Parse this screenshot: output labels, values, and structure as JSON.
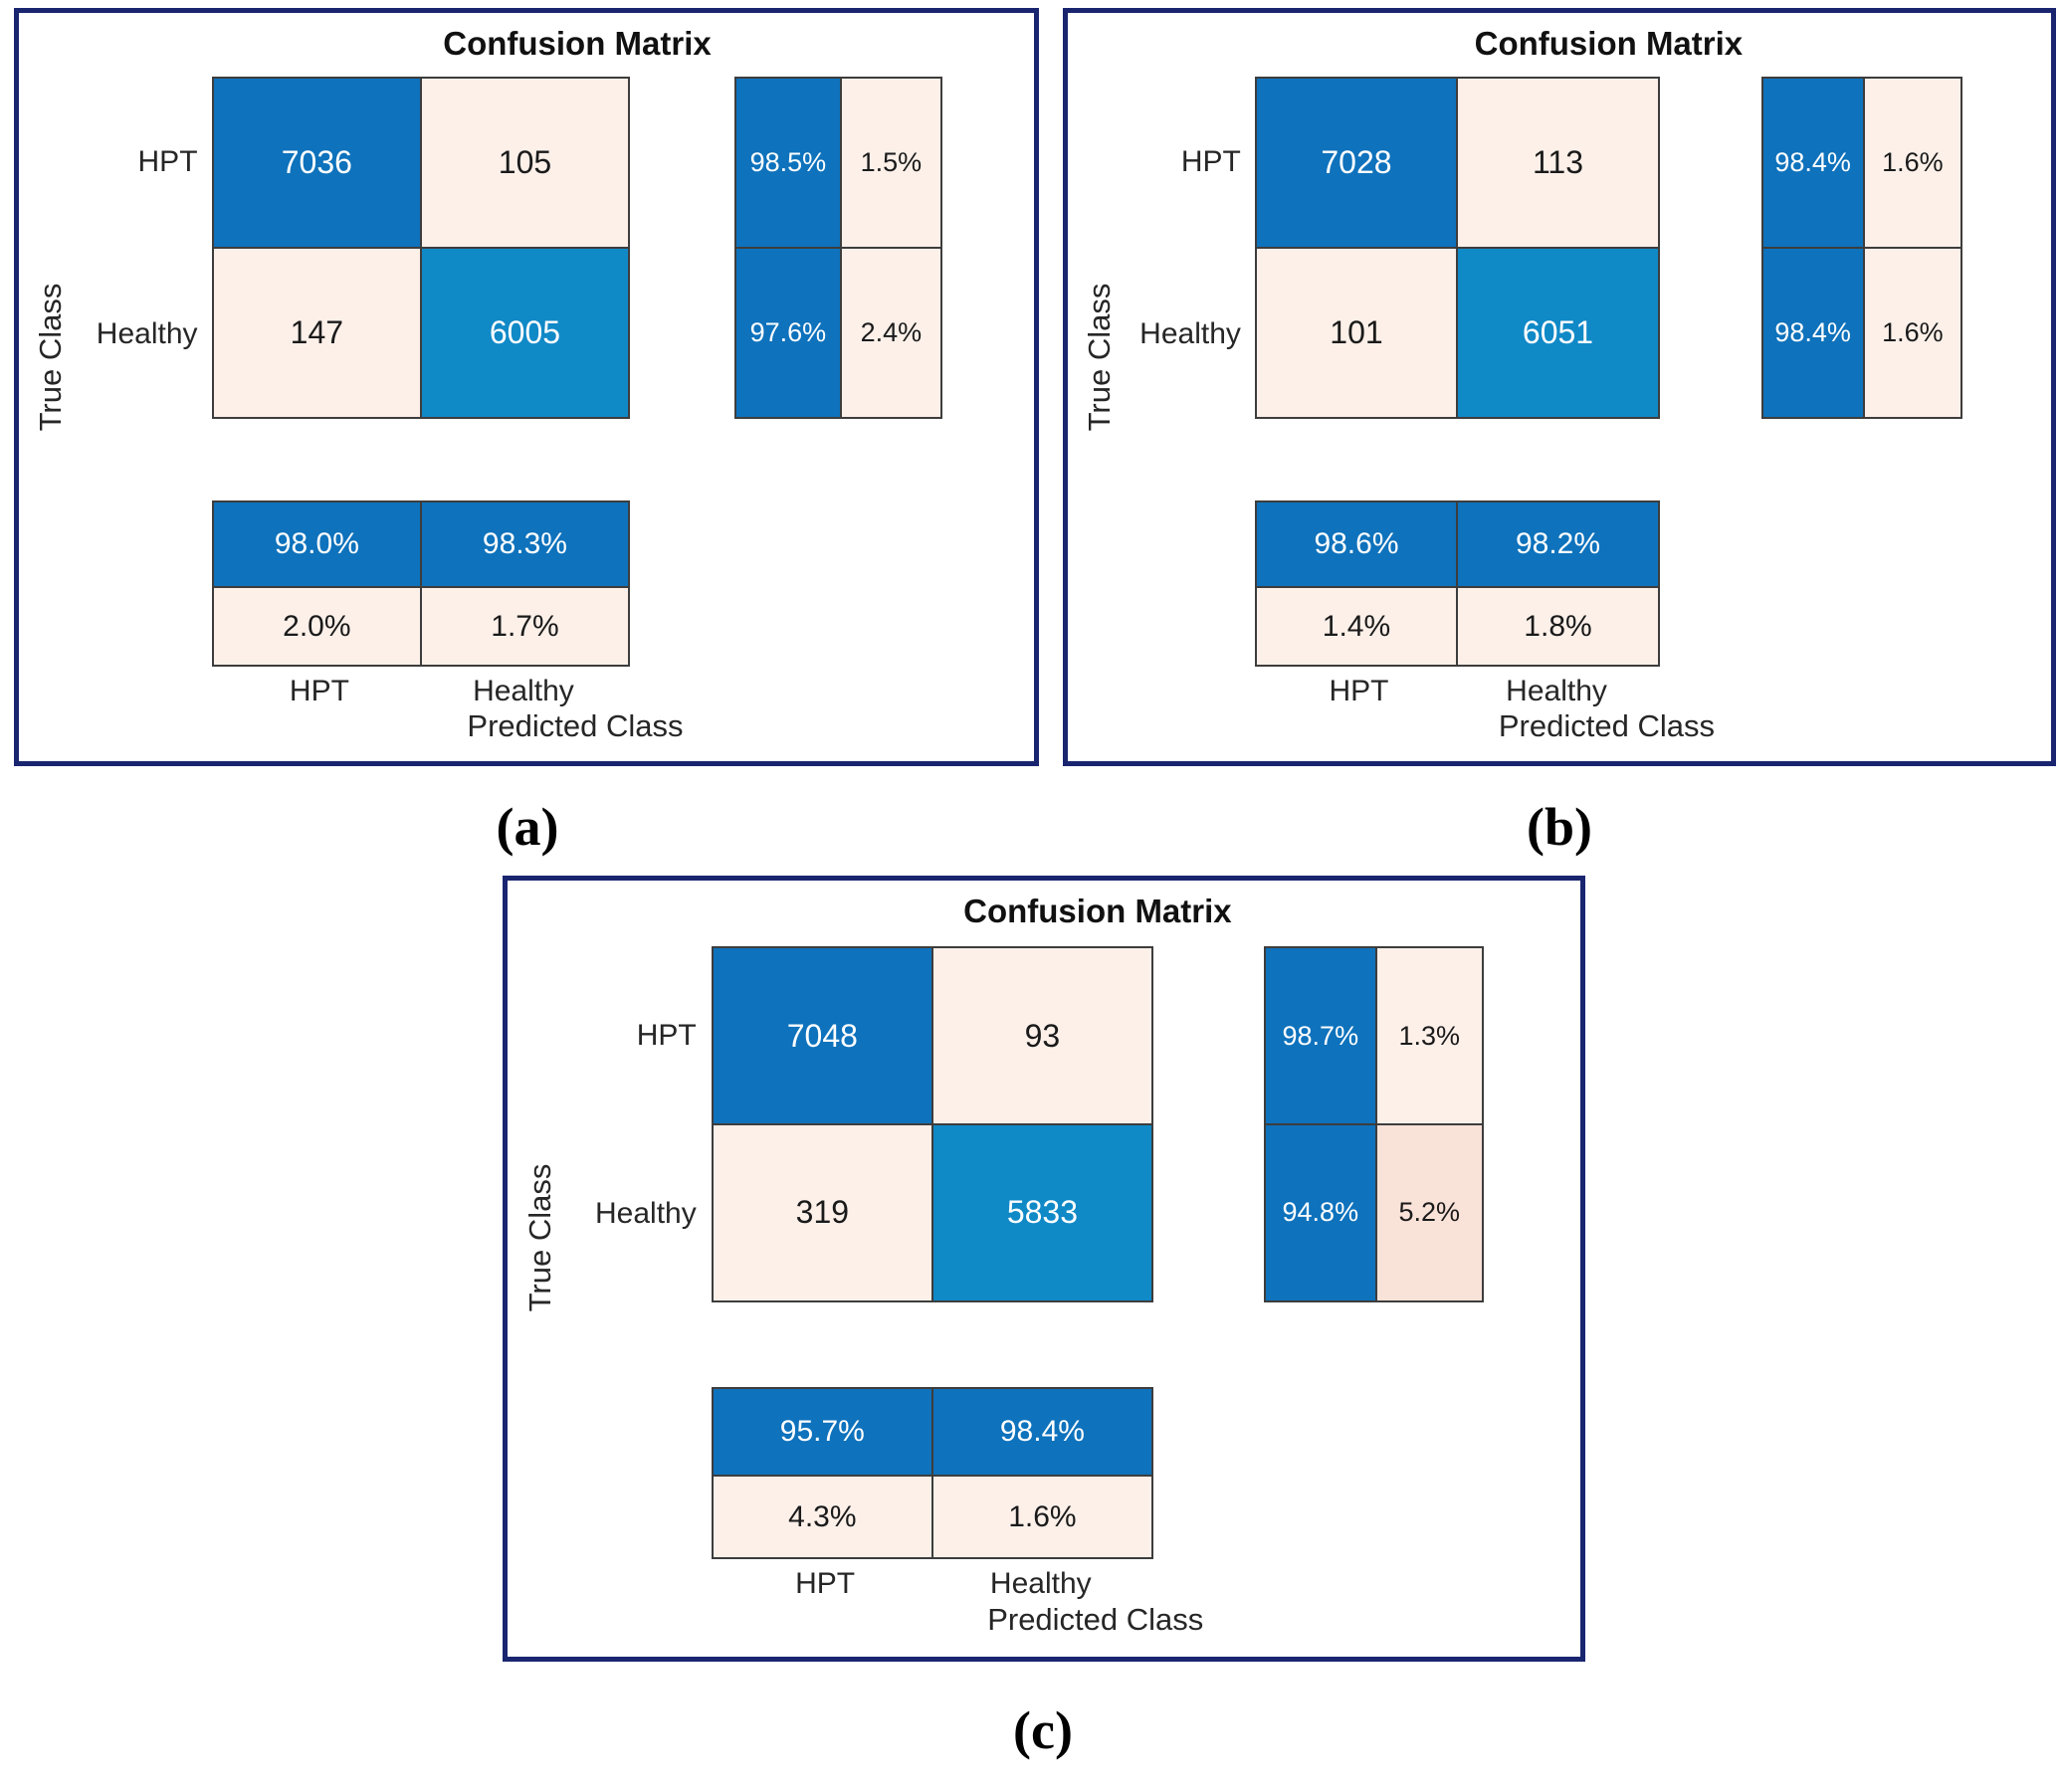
{
  "palette": {
    "frame_navy": "#1a2570",
    "diagonal_blue_dark": "#0e72bc",
    "diagonal_blue_light": "#1089c7",
    "offdiagonal_pink_light": "#fcf0e9",
    "offdiagonal_pink_mid": "#f9e2d8",
    "grid_line": "#3d3d3d",
    "text_on_blue": "#ffffff",
    "text_dark": "#1f1f1f"
  },
  "panels": {
    "a": {
      "caption": "(a)",
      "title": "Confusion Matrix",
      "ylabel": "True Class",
      "xlabel": "Predicted Class",
      "row_labels": [
        "HPT",
        "Healthy"
      ],
      "col_labels": [
        "HPT",
        "Healthy"
      ],
      "counts": [
        [
          "7036",
          "105"
        ],
        [
          "147",
          "6005"
        ]
      ],
      "row_summary": [
        [
          "98.5%",
          "1.5%"
        ],
        [
          "97.6%",
          "2.4%"
        ]
      ],
      "col_summary": [
        [
          "98.0%",
          "98.3%"
        ],
        [
          "2.0%",
          "1.7%"
        ]
      ]
    },
    "b": {
      "caption": "(b)",
      "title": "Confusion Matrix",
      "ylabel": "True Class",
      "xlabel": "Predicted Class",
      "row_labels": [
        "HPT",
        "Healthy"
      ],
      "col_labels": [
        "HPT",
        "Healthy"
      ],
      "counts": [
        [
          "7028",
          "113"
        ],
        [
          "101",
          "6051"
        ]
      ],
      "row_summary": [
        [
          "98.4%",
          "1.6%"
        ],
        [
          "98.4%",
          "1.6%"
        ]
      ],
      "col_summary": [
        [
          "98.6%",
          "98.2%"
        ],
        [
          "1.4%",
          "1.8%"
        ]
      ]
    },
    "c": {
      "caption": "(c)",
      "title": "Confusion Matrix",
      "ylabel": "True Class",
      "xlabel": "Predicted Class",
      "row_labels": [
        "HPT",
        "Healthy"
      ],
      "col_labels": [
        "HPT",
        "Healthy"
      ],
      "counts": [
        [
          "7048",
          "93"
        ],
        [
          "319",
          "5833"
        ]
      ],
      "row_summary": [
        [
          "98.7%",
          "1.3%"
        ],
        [
          "94.8%",
          "5.2%"
        ]
      ],
      "col_summary": [
        [
          "95.7%",
          "98.4%"
        ],
        [
          "4.3%",
          "1.6%"
        ]
      ]
    }
  },
  "chart_data": [
    {
      "type": "heatmap",
      "panel": "a",
      "title": "Confusion Matrix",
      "xlabel": "Predicted Class",
      "ylabel": "True Class",
      "classes": [
        "HPT",
        "Healthy"
      ],
      "matrix": [
        [
          7036,
          105
        ],
        [
          147,
          6005
        ]
      ],
      "row_normalized_pct": [
        [
          98.5,
          1.5
        ],
        [
          97.6,
          2.4
        ]
      ],
      "col_normalized_pct": [
        [
          98.0,
          98.3
        ],
        [
          2.0,
          1.7
        ]
      ]
    },
    {
      "type": "heatmap",
      "panel": "b",
      "title": "Confusion Matrix",
      "xlabel": "Predicted Class",
      "ylabel": "True Class",
      "classes": [
        "HPT",
        "Healthy"
      ],
      "matrix": [
        [
          7028,
          113
        ],
        [
          101,
          6051
        ]
      ],
      "row_normalized_pct": [
        [
          98.4,
          1.6
        ],
        [
          98.4,
          1.6
        ]
      ],
      "col_normalized_pct": [
        [
          98.6,
          98.2
        ],
        [
          1.4,
          1.8
        ]
      ]
    },
    {
      "type": "heatmap",
      "panel": "c",
      "title": "Confusion Matrix",
      "xlabel": "Predicted Class",
      "ylabel": "True Class",
      "classes": [
        "HPT",
        "Healthy"
      ],
      "matrix": [
        [
          7048,
          93
        ],
        [
          319,
          5833
        ]
      ],
      "row_normalized_pct": [
        [
          98.7,
          1.3
        ],
        [
          94.8,
          5.2
        ]
      ],
      "col_normalized_pct": [
        [
          95.7,
          98.4
        ],
        [
          4.3,
          1.6
        ]
      ]
    }
  ]
}
